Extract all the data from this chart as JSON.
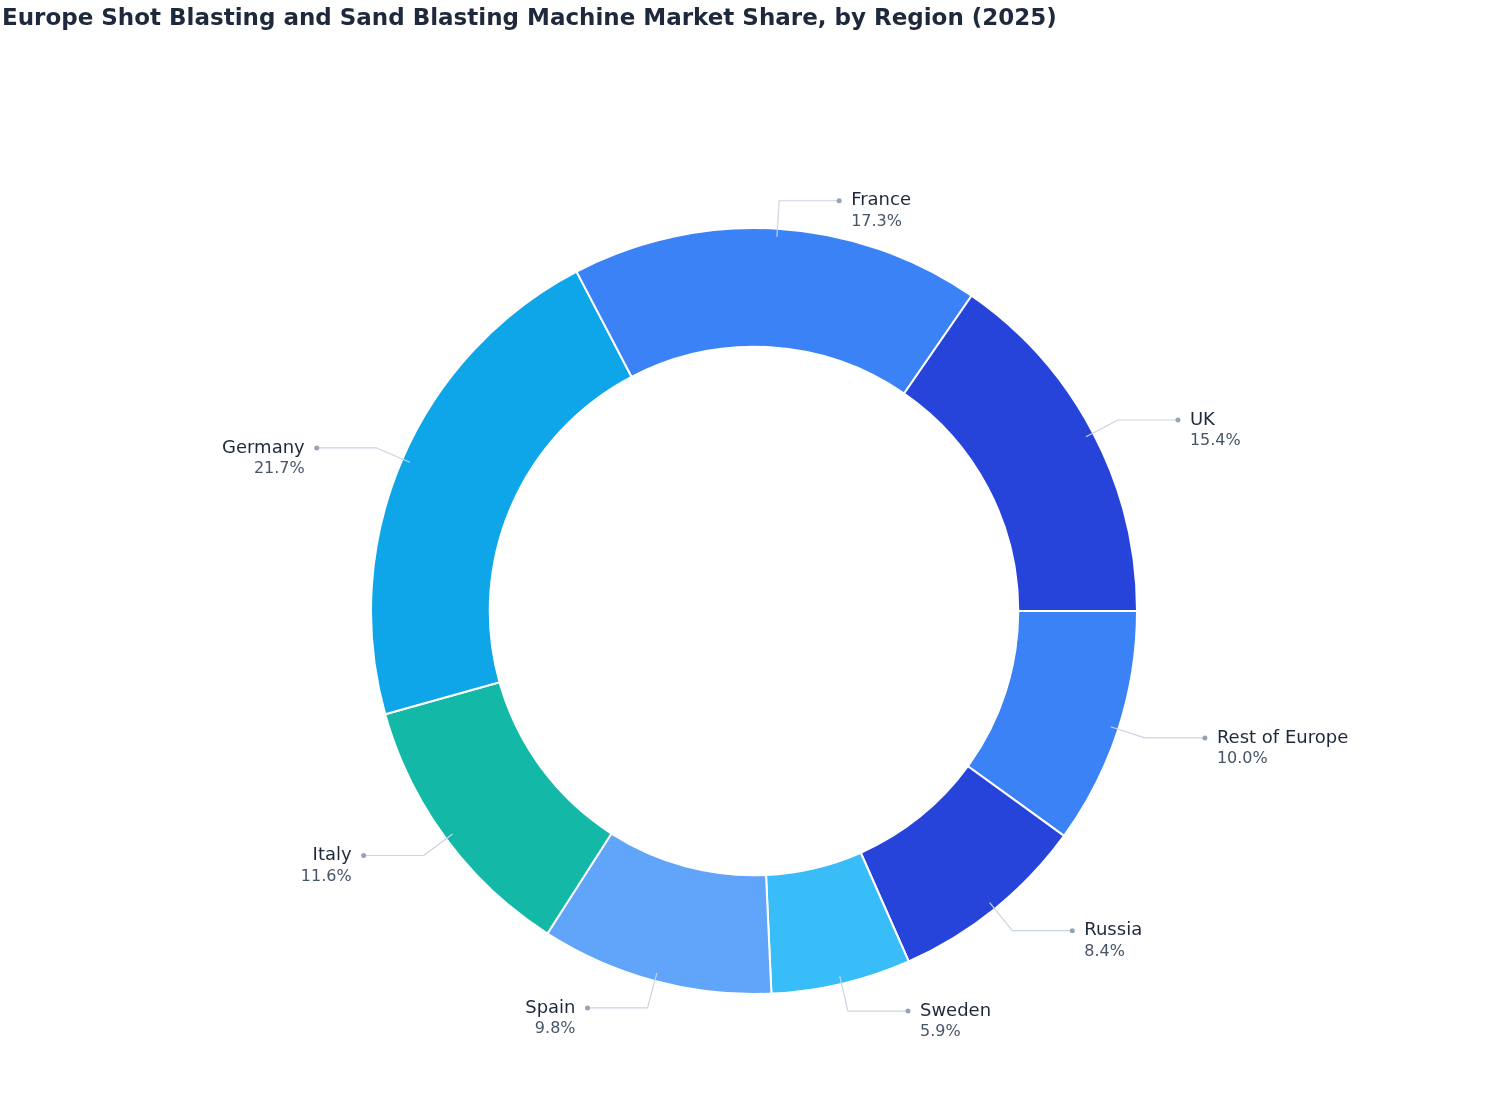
{
  "chart_data": {
    "type": "donut",
    "title": "Europe Shot Blasting and Sand Blasting Machine Market Share, by Region (2025)",
    "categories": [
      "Rest of Europe",
      "Russia",
      "Sweden",
      "Spain",
      "Italy",
      "Germany",
      "France",
      "UK"
    ],
    "values": [
      10.0,
      8.4,
      5.9,
      9.8,
      11.6,
      21.7,
      17.3,
      15.4
    ],
    "value_labels": [
      "10.0%",
      "8.4%",
      "5.9%",
      "9.8%",
      "11.6%",
      "21.7%",
      "17.3%",
      "15.4%"
    ],
    "colors": [
      "#3b82f6",
      "#2644d9",
      "#38bdf8",
      "#60a5fa",
      "#14b8a6",
      "#0ea5e9",
      "#3b82f6",
      "#2644d9"
    ],
    "legend": false
  }
}
